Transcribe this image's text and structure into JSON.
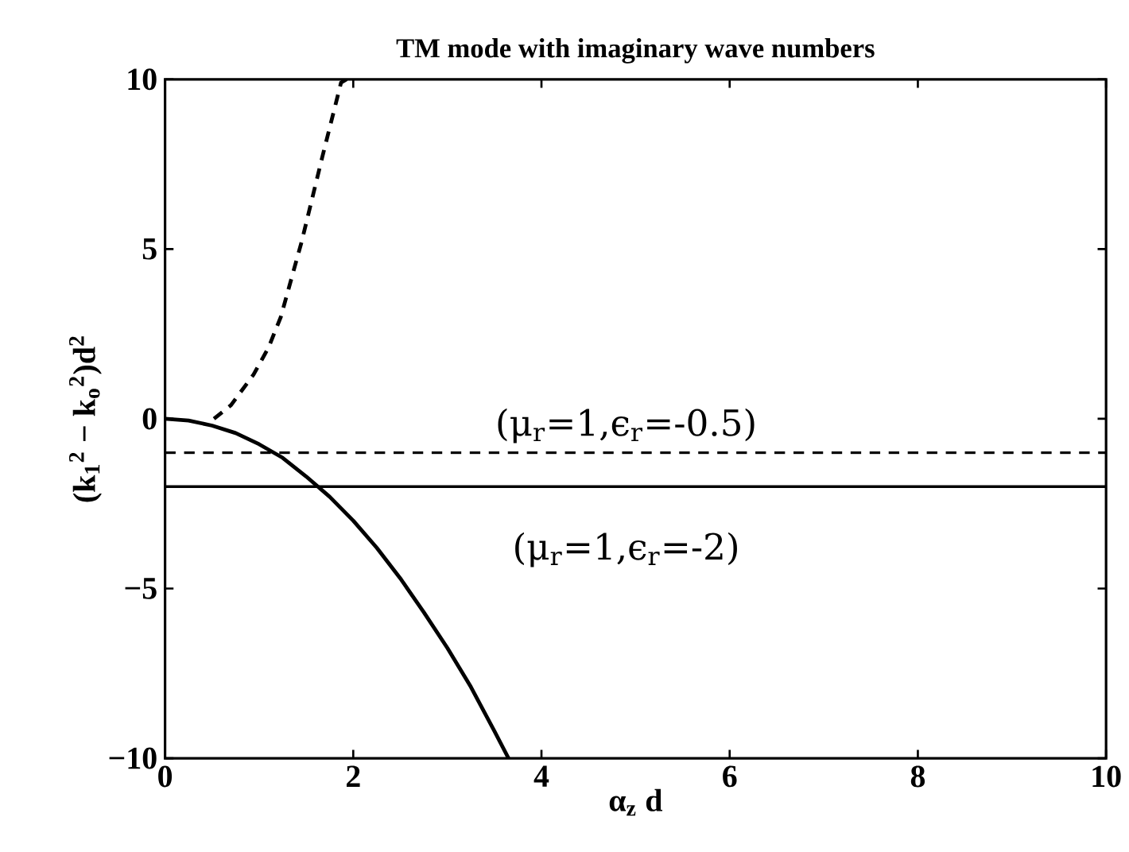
{
  "chart_data": {
    "type": "line",
    "title": "TM mode with imaginary wave numbers",
    "xlabel": "α$_{z}$ d",
    "ylabel": "(k$_{1}$$^{2}$ − k$_{o}$$^{2}$)d$^{2}$",
    "series": [
      {
        "color": "#000000",
        "line_style": "dashed",
        "x": [
          0.52,
          0.7,
          0.94,
          1.1,
          1.23,
          1.45,
          1.67,
          1.87,
          1.93
        ],
        "values": [
          0,
          0.4,
          1.3,
          2.1,
          3.0,
          5.2,
          7.7,
          9.9,
          10
        ]
      },
      {
        "color": "#000000",
        "line_style": "solid",
        "x": [
          0,
          0.25,
          0.5,
          0.75,
          1,
          1.25,
          1.5,
          1.75,
          2,
          2.25,
          2.5,
          2.75,
          3,
          3.25,
          3.5,
          3.65
        ],
        "values": [
          0,
          -0.05,
          -0.2,
          -0.42,
          -0.75,
          -1.15,
          -1.7,
          -2.3,
          -3,
          -3.8,
          -4.7,
          -5.7,
          -6.75,
          -7.9,
          -9.2,
          -10
        ]
      }
    ],
    "ref_lines": [
      {
        "axis": "y",
        "value": -1,
        "color": "#000000",
        "line_style": "dashed"
      },
      {
        "axis": "y",
        "value": -2,
        "color": "#000000",
        "line_style": "solid"
      }
    ],
    "annotations": [
      "(μ$_{r}$=1,ϵ$_{r}$=-0.5)",
      "(μ$_{r}$=1,ϵ$_{r}$=-2)"
    ],
    "xlim": [
      0,
      10
    ],
    "ylim": [
      -10,
      10
    ],
    "xticks": [
      0,
      2,
      4,
      6,
      8,
      10
    ],
    "yticks": [
      {
        "value": -10,
        "label": "−10"
      },
      {
        "value": -5,
        "label": "−5"
      },
      0,
      5,
      10
    ],
    "tick_labels": "xy"
  }
}
